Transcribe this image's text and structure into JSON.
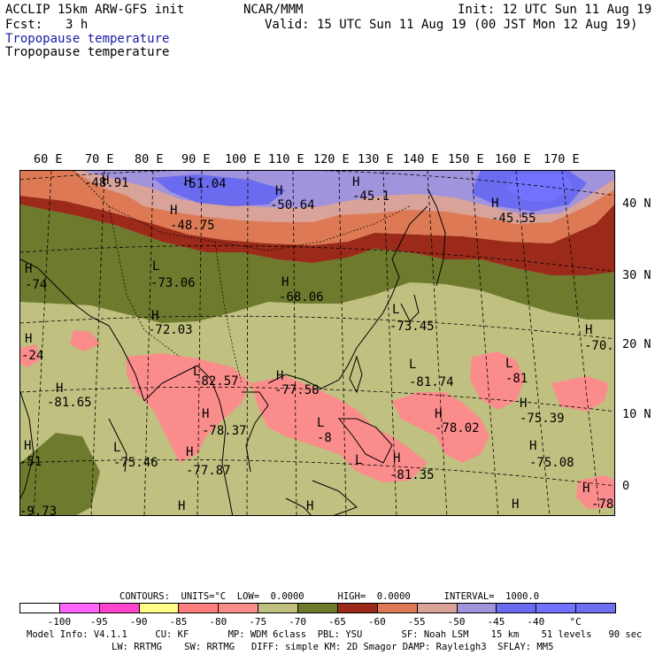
{
  "header": {
    "model": "ACCLIP 15km ARW-GFS init",
    "org": "NCAR/MMM",
    "init": "Init: 12 UTC Sun 11 Aug 19",
    "fcst_label": "Fcst:",
    "fcst_value": "3 h",
    "valid": "Valid: 15 UTC Sun 11 Aug 19 (00 JST Mon 12 Aug 19)",
    "field_1": "Tropopause temperature",
    "field_2": "Tropopause temperature"
  },
  "map": {
    "lon_labels": [
      "60 E",
      "70 E",
      "80 E",
      "90 E",
      "100 E",
      "110 E",
      "120 E",
      "130 E",
      "140 E",
      "150 E",
      "160 E",
      "170 E"
    ],
    "lat_labels": [
      "40 N",
      "30 N",
      "20 N",
      "10 N",
      "0"
    ],
    "hl_markers": [
      {
        "t": "H"
      },
      {
        "t": "H"
      },
      {
        "t": "H"
      },
      {
        "t": "H"
      },
      {
        "t": "H"
      },
      {
        "t": "H"
      },
      {
        "t": "H"
      },
      {
        "t": "L"
      },
      {
        "t": "H"
      },
      {
        "t": "L"
      },
      {
        "t": "H"
      },
      {
        "t": "H"
      },
      {
        "t": "H"
      },
      {
        "t": "L"
      },
      {
        "t": "L"
      },
      {
        "t": "L"
      },
      {
        "t": "H"
      },
      {
        "t": "H"
      },
      {
        "t": "H"
      },
      {
        "t": "H"
      },
      {
        "t": "H"
      },
      {
        "t": "L"
      },
      {
        "t": "L"
      },
      {
        "t": "H"
      },
      {
        "t": "H"
      },
      {
        "t": "H"
      },
      {
        "t": "H"
      },
      {
        "t": "H"
      },
      {
        "t": "L"
      },
      {
        "t": "H"
      },
      {
        "t": "H"
      },
      {
        "t": "H"
      }
    ],
    "values": [
      "-48.91",
      "-51.04",
      "-50.64",
      "-45.1",
      "-48.75",
      "-45.55",
      "-74",
      "-73.06",
      "-68.06",
      "-73.45",
      "-72.03",
      "-70.",
      "-24",
      "-81.74",
      "-81",
      "-77.58",
      "-81.65",
      "-82.57",
      "-75.39",
      "-78.37",
      "-78.02",
      "-8",
      "-75.46",
      "-77.87",
      "-81.35",
      "-75.08",
      "-51",
      "-78",
      "-9.73"
    ]
  },
  "colorbar": {
    "header": "CONTOURS:  UNITS=°C  LOW=  0.0000      HIGH=  0.0000      INTERVAL=  1000.0",
    "colors": [
      "#ffffff",
      "#ff66ff",
      "#ff44cc",
      "#ffff88",
      "#ff7f7f",
      "#fb8c8c",
      "#c0c080",
      "#6e7a2e",
      "#9b2a1a",
      "#dd7a55",
      "#d9a39a",
      "#a193dc",
      "#6b6bef",
      "#7272ff",
      "#6e6ef0"
    ],
    "labels": [
      "-100",
      "-95",
      "-90",
      "-85",
      "-80",
      "-75",
      "-70",
      "-65",
      "-60",
      "-55",
      "-50",
      "-45",
      "-40",
      "°C"
    ]
  },
  "footer": {
    "line1": "Model Info: V4.1.1     CU: KF       MP: WDM 6class  PBL: YSU       SF: Noah LSM    15 km    51 levels   90 sec",
    "line2": "LW: RRTMG    SW: RRTMG   DIFF: simple KM: 2D Smagor DAMP: Rayleigh3  SFLAY: MM5"
  }
}
